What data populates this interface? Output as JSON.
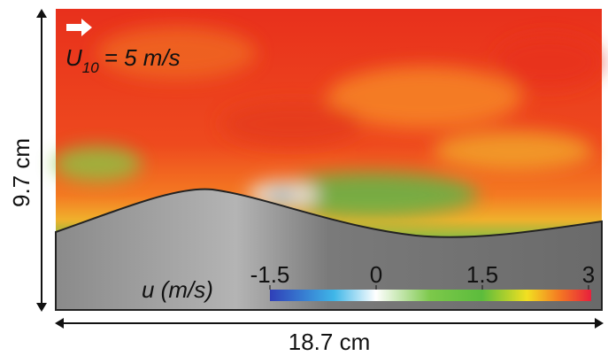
{
  "annotation": {
    "symbol": "U",
    "subscript": "10",
    "text": "= 5 m/s"
  },
  "colorbar": {
    "label": "u (m/s)",
    "lim": [
      -1.5,
      3
    ],
    "ticks": [
      -1.5,
      0,
      1.5,
      3
    ]
  },
  "dimensions": {
    "height": "9.7 cm",
    "width": "18.7 cm"
  }
}
